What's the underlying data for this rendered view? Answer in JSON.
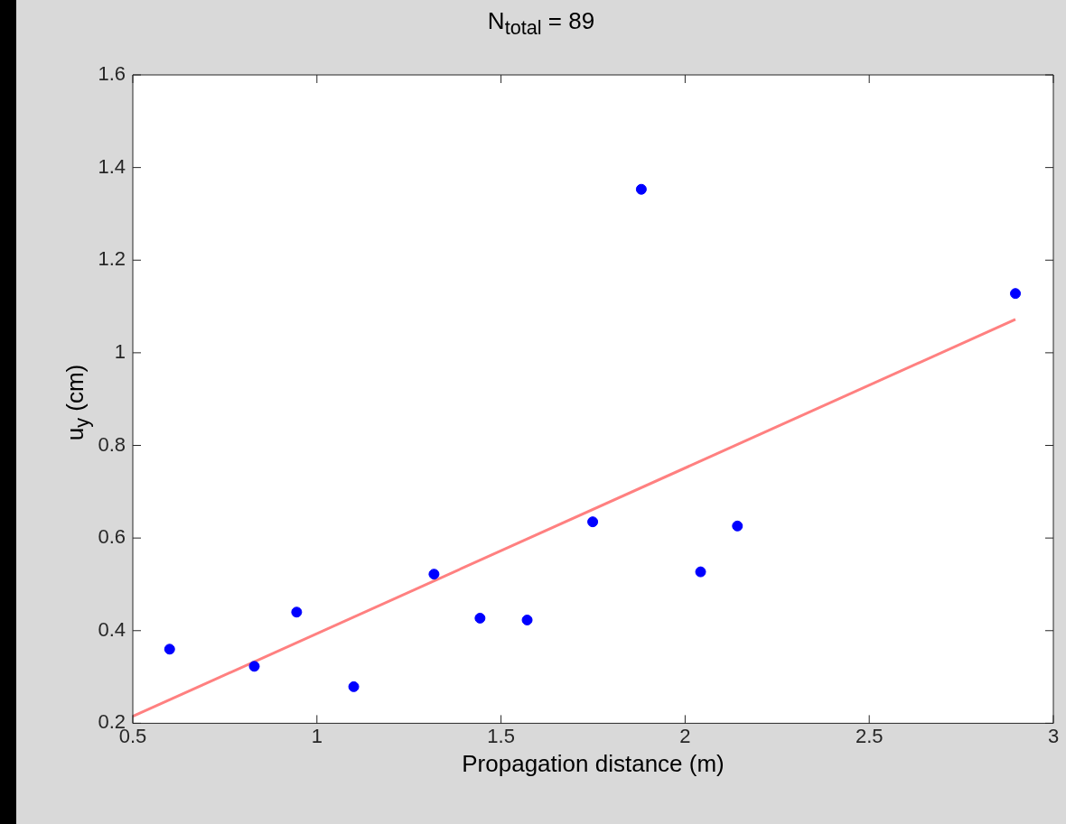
{
  "chart_data": {
    "type": "scatter",
    "title": "N$_{total}$ = 89",
    "xlabel": "Propagation distance (m)",
    "ylabel": "u$_{y}$ (cm)",
    "xlim": [
      0.5,
      3
    ],
    "xticks": [
      0.5,
      1,
      1.5,
      2,
      2.5,
      3
    ],
    "ylim": [
      0.2,
      1.6
    ],
    "yticks": [
      0.2,
      0.4,
      0.6,
      0.8,
      1,
      1.2,
      1.4,
      1.6
    ],
    "grid": false,
    "legend": false,
    "series": [
      {
        "marker": "circle",
        "color": "#0000ff",
        "x": [
          0.6,
          0.83,
          0.945,
          1.1,
          1.318,
          1.443,
          1.571,
          1.749,
          1.881,
          2.042,
          2.142,
          2.897
        ],
        "values": [
          0.36,
          0.323,
          0.44,
          0.279,
          0.522,
          0.427,
          0.423,
          0.635,
          1.353,
          0.527,
          0.626,
          1.128
        ]
      },
      {
        "type": "line",
        "marker": "none",
        "color": "#ff8080",
        "line_style": "solid",
        "x": [
          0.5,
          2.897
        ],
        "values": [
          0.215,
          1.072
        ]
      }
    ]
  }
}
